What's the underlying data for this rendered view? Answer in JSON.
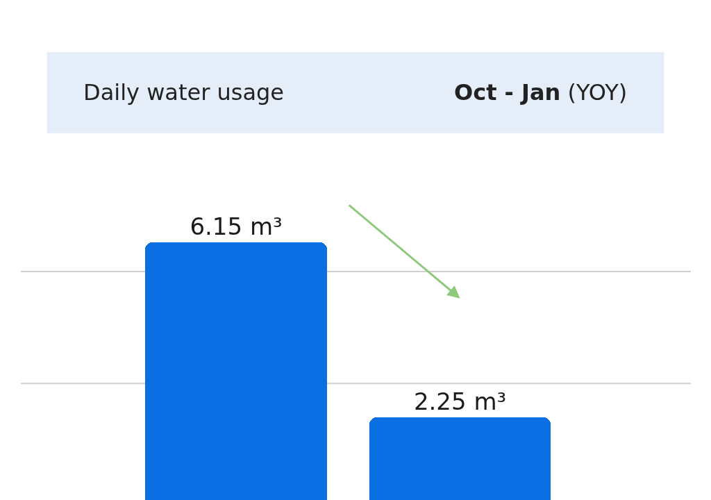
{
  "chart_data": {
    "type": "bar",
    "title": "Daily water usage",
    "subtitle": "Oct - Jan (YOY)",
    "categories": [
      null,
      null
    ],
    "values": [
      6.15,
      2.25
    ],
    "value_labels": [
      "6.15 m³",
      "2.25 m³"
    ],
    "color": "#0b6fe4",
    "ref_lines": [
      {
        "axis": "y",
        "value": 3.0,
        "color": "#cfcfcf"
      },
      {
        "axis": "y",
        "value": 5.5,
        "color": "#cfcfcf"
      }
    ]
  }
}
